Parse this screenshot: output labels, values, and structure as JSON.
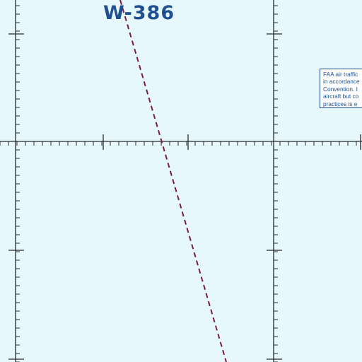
{
  "map": {
    "airspace_label": "W-386",
    "note_lines": [
      "FAA air traffic",
      "in accordance",
      "Convention. I",
      "aircraft but co",
      "practices is e"
    ],
    "colors": {
      "background": "#e6f8fc",
      "grid": "#2a2a2a",
      "airspace_text": "#1d4f91",
      "boundary_line": "#7a1f3d"
    }
  }
}
